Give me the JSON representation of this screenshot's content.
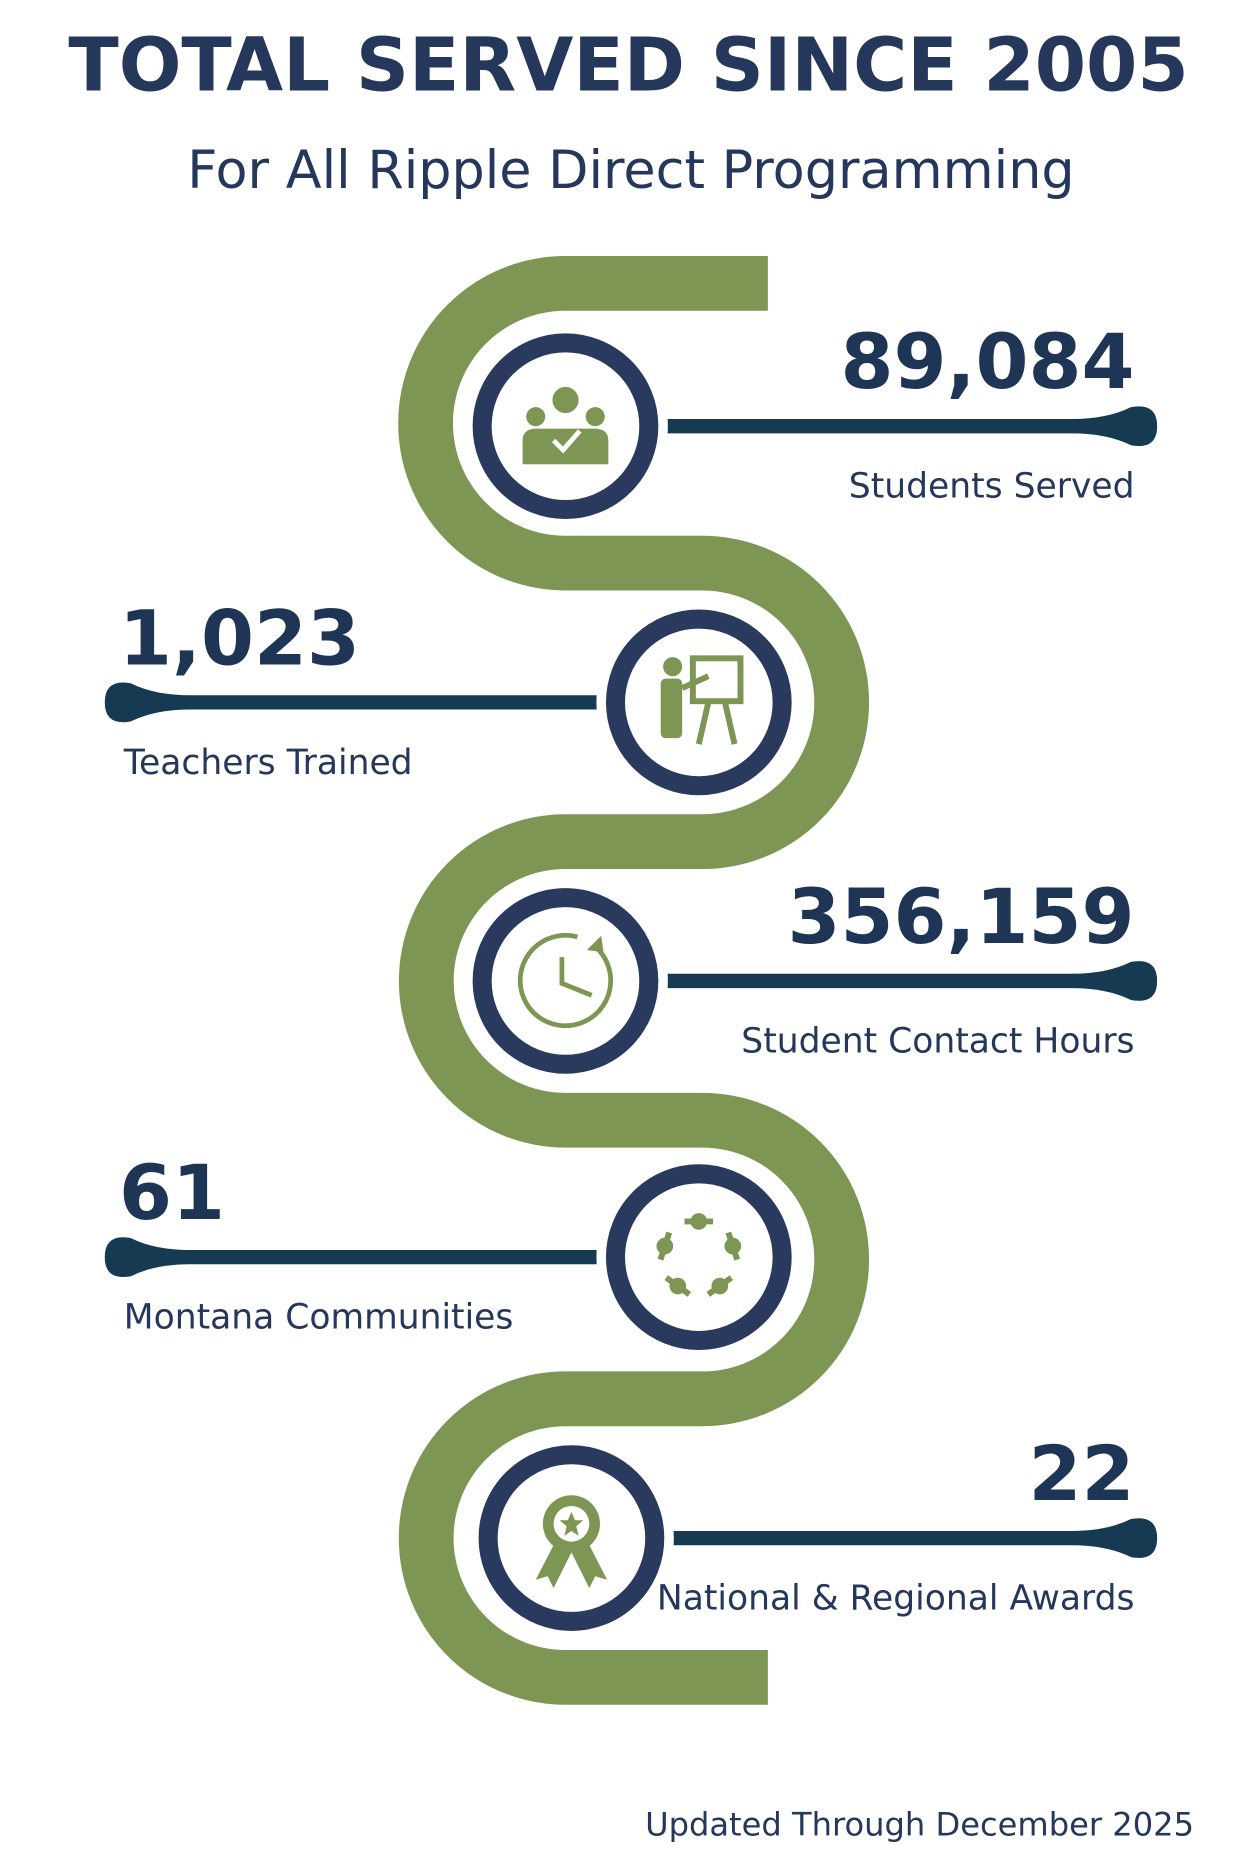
{
  "header": {
    "title": "TOTAL SERVED SINCE 2005",
    "subtitle": "For All Ripple Direct Programming"
  },
  "stats": [
    {
      "value": "89,084",
      "label": "Students Served"
    },
    {
      "value": "1,023",
      "label": "Teachers Trained"
    },
    {
      "value": "356,159",
      "label": "Student Contact Hours"
    },
    {
      "value": "61",
      "label": "Montana Communities"
    },
    {
      "value": "22",
      "label": "National & Regional Awards"
    }
  ],
  "footer": "Updated Through December 2025"
}
